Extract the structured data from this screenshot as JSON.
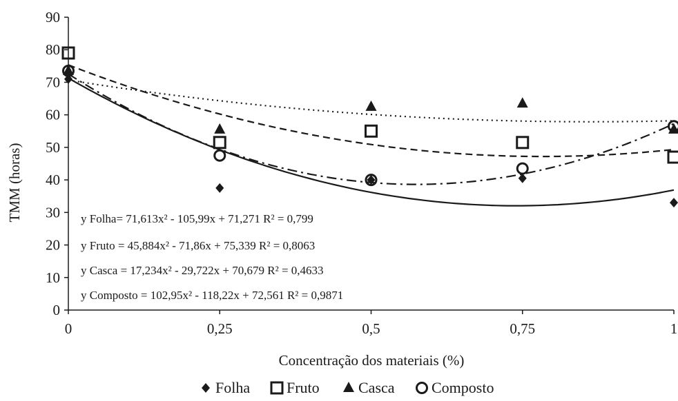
{
  "chart_data": {
    "type": "scatter",
    "xlabel": "Concentração dos materiais (%)",
    "ylabel": "TMM (horas)",
    "x": [
      0,
      0.25,
      0.5,
      0.75,
      1
    ],
    "x_tick_labels": [
      "0",
      "0,25",
      "0,5",
      "0,75",
      "1"
    ],
    "y_ticks": [
      0,
      10,
      20,
      30,
      40,
      50,
      60,
      70,
      80,
      90
    ],
    "y_tick_labels": [
      "0",
      "10",
      "20",
      "30",
      "40",
      "50",
      "60",
      "70",
      "80",
      "90"
    ],
    "xlim": [
      0,
      1
    ],
    "ylim": [
      0,
      90
    ],
    "grid": false,
    "legend_position": "bottom",
    "series": [
      {
        "name": "Folha",
        "marker": "diamond",
        "line_style": "solid",
        "values": [
          71,
          37.5,
          40,
          40.5,
          33
        ],
        "fit": [
          71.613,
          -105.99,
          71.271
        ],
        "equation": "y Folha= 71,613x² - 105,99x + 71,271  R² = 0,799"
      },
      {
        "name": "Fruto",
        "marker": "square",
        "line_style": "dashed",
        "values": [
          79,
          51.5,
          55,
          51.5,
          47
        ],
        "fit": [
          45.884,
          -71.86,
          75.339
        ],
        "equation": "y Fruto = 45,884x² - 71,86x + 75,339  R² = 0,8063"
      },
      {
        "name": "Casca",
        "marker": "triangle",
        "line_style": "dotted",
        "values": [
          73.5,
          55.5,
          62.5,
          63.5,
          55.5
        ],
        "fit": [
          17.234,
          -29.722,
          70.679
        ],
        "equation": "y Casca  = 17,234x² - 29,722x + 70,679  R² = 0,4633"
      },
      {
        "name": "Composto",
        "marker": "circle",
        "line_style": "dashdot",
        "values": [
          73.5,
          47.5,
          40,
          43.5,
          56.5
        ],
        "fit": [
          102.95,
          -118.22,
          72.561
        ],
        "equation": "y Composto = 102,95x² - 118,22x + 72,561  R² = 0,9871"
      }
    ]
  }
}
